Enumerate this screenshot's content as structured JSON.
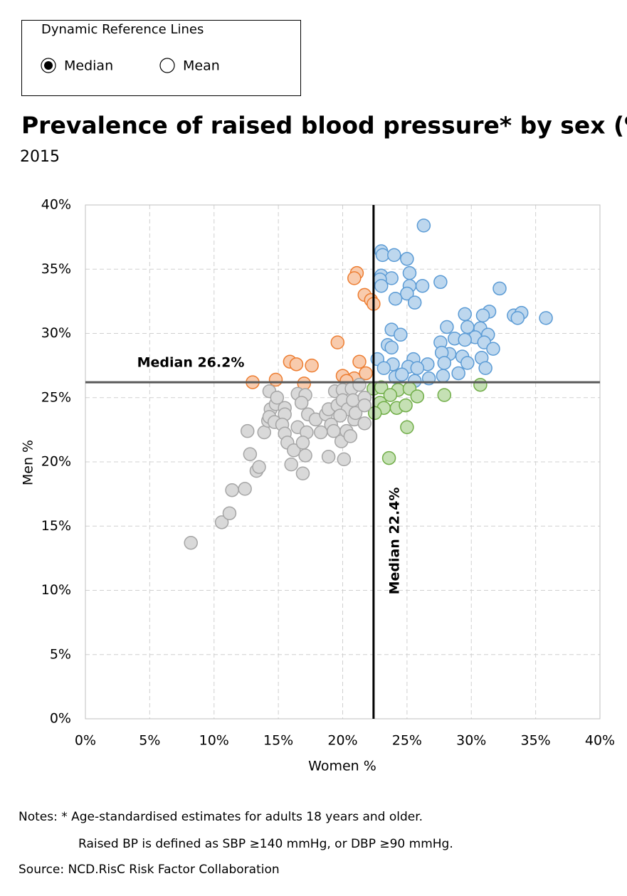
{
  "controls": {
    "title": "Dynamic Reference Lines",
    "options": [
      {
        "label": "Median",
        "selected": true
      },
      {
        "label": "Mean",
        "selected": false
      }
    ]
  },
  "chart_data": {
    "type": "scatter",
    "title": "Prevalence of raised blood pressure* by sex (%)",
    "subtitle": "2015",
    "x_label": "Women %",
    "y_label": "Men %",
    "xlim": [
      0,
      40
    ],
    "ylim": [
      0,
      40
    ],
    "xticks": [
      {
        "value": 0,
        "label": "0%"
      },
      {
        "value": 5,
        "label": "5%"
      },
      {
        "value": 10,
        "label": "10%"
      },
      {
        "value": 15,
        "label": "15%"
      },
      {
        "value": 20,
        "label": "20%"
      },
      {
        "value": 25,
        "label": "25%"
      },
      {
        "value": 30,
        "label": "30%"
      },
      {
        "value": 35,
        "label": "35%"
      },
      {
        "value": 40,
        "label": "40%"
      }
    ],
    "yticks": [
      {
        "value": 0,
        "label": "0%"
      },
      {
        "value": 5,
        "label": "5%"
      },
      {
        "value": 10,
        "label": "10%"
      },
      {
        "value": 15,
        "label": "15%"
      },
      {
        "value": 20,
        "label": "20%"
      },
      {
        "value": 25,
        "label": "25%"
      },
      {
        "value": 30,
        "label": "30%"
      },
      {
        "value": 35,
        "label": "35%"
      },
      {
        "value": 40,
        "label": "40%"
      }
    ],
    "grid": true,
    "reference_lines": [
      {
        "axis": "y",
        "value": 26.2,
        "label": "Median 26.2%",
        "color": "#595959"
      },
      {
        "axis": "x",
        "value": 22.4,
        "label": "Median 22.4%",
        "color": "#000000"
      }
    ],
    "series": [
      {
        "color": "#bdd7ee",
        "edge": "#5b9bd5",
        "x": [
          26.3,
          23.0,
          23.1,
          24.0,
          25.0,
          25.2,
          23.0,
          23.8,
          22.9,
          26.2,
          25.2,
          27.6,
          23.0,
          25.0,
          24.1,
          25.6,
          32.2,
          29.5,
          31.4,
          30.9,
          33.3,
          33.9,
          33.6,
          35.8,
          29.7,
          28.1,
          30.7,
          23.8,
          24.5,
          31.3,
          30.3,
          28.7,
          29.5,
          27.6,
          23.5,
          31.0,
          31.7,
          23.8,
          28.3,
          29.3,
          27.7,
          30.8,
          25.5,
          22.7,
          23.9,
          26.6,
          27.9,
          29.7,
          25.1,
          25.8,
          31.1,
          23.2,
          24.1,
          24.6,
          25.6,
          26.7,
          27.8,
          29.0
        ],
        "y": [
          38.4,
          36.4,
          36.1,
          36.1,
          35.8,
          34.7,
          34.5,
          34.3,
          34.2,
          33.7,
          33.7,
          34.0,
          33.7,
          33.1,
          32.7,
          32.4,
          33.5,
          31.5,
          31.7,
          31.4,
          31.4,
          31.6,
          31.2,
          31.2,
          30.5,
          30.5,
          30.4,
          30.3,
          29.9,
          29.9,
          29.7,
          29.6,
          29.5,
          29.3,
          29.1,
          29.3,
          28.8,
          28.9,
          28.4,
          28.2,
          28.5,
          28.1,
          28.0,
          28.0,
          27.6,
          27.6,
          27.7,
          27.7,
          27.4,
          27.3,
          27.3,
          27.3,
          26.6,
          26.8,
          26.3,
          26.5,
          26.7,
          26.9
        ]
      },
      {
        "color": "#f8cbad",
        "edge": "#ed7d31",
        "x": [
          21.1,
          20.9,
          21.7,
          22.2,
          22.4,
          19.6,
          15.9,
          16.4,
          17.6,
          21.3,
          14.8,
          17.0,
          13.0,
          20.0,
          20.9,
          21.8,
          20.3
        ],
        "y": [
          34.7,
          34.3,
          33.0,
          32.6,
          32.3,
          29.3,
          27.8,
          27.6,
          27.5,
          27.8,
          26.4,
          26.1,
          26.2,
          26.7,
          26.5,
          26.9,
          26.3
        ]
      },
      {
        "color": "#c5e0b4",
        "edge": "#70ad47",
        "x": [
          22.4,
          23.0,
          24.3,
          25.2,
          23.7,
          25.8,
          27.9,
          30.7,
          22.9,
          23.2,
          24.2,
          24.9,
          22.5,
          25.0,
          23.6
        ],
        "y": [
          25.7,
          25.8,
          25.6,
          25.7,
          25.2,
          25.1,
          25.2,
          26.0,
          24.6,
          24.2,
          24.2,
          24.4,
          23.8,
          22.7,
          20.3
        ]
      },
      {
        "color": "#d9d9d9",
        "edge": "#a5a5a5",
        "x": [
          8.2,
          10.6,
          11.2,
          11.4,
          12.4,
          13.3,
          13.5,
          12.8,
          12.6,
          13.9,
          14.2,
          14.4,
          14.8,
          14.3,
          14.7,
          14.3,
          14.9,
          15.5,
          15.5,
          15.3,
          15.5,
          15.7,
          16.0,
          16.2,
          16.5,
          16.5,
          17.1,
          16.8,
          17.3,
          17.2,
          17.1,
          16.9,
          16.9,
          17.9,
          18.3,
          18.7,
          18.9,
          18.9,
          19.1,
          19.3,
          19.6,
          19.4,
          20.0,
          20.0,
          19.9,
          20.1,
          20.3,
          20.4,
          20.7,
          20.8,
          20.6,
          20.9,
          21.0,
          21.3,
          21.7,
          21.7,
          21.7,
          19.8
        ],
        "y": [
          13.7,
          15.3,
          16.0,
          17.8,
          17.9,
          19.3,
          19.6,
          20.6,
          22.4,
          22.3,
          23.2,
          24.1,
          24.5,
          23.5,
          23.1,
          25.5,
          25.0,
          24.2,
          23.7,
          22.9,
          22.2,
          21.5,
          19.8,
          20.9,
          22.7,
          25.3,
          25.2,
          24.6,
          23.7,
          22.3,
          20.5,
          21.5,
          19.1,
          23.3,
          22.3,
          23.7,
          24.1,
          20.4,
          22.9,
          22.4,
          24.4,
          25.5,
          25.6,
          24.8,
          21.6,
          20.2,
          22.4,
          24.1,
          25.7,
          24.8,
          22.0,
          23.3,
          23.8,
          26.0,
          25.0,
          23.0,
          24.4,
          23.6
        ]
      }
    ]
  },
  "notes": [
    "Notes: * Age-standardised estimates for adults 18 years and older.",
    "Raised BP is defined as SBP ≥140 mmHg, or DBP ≥90 mmHg."
  ],
  "source": "Source: NCD.RisC Risk Factor Collaboration"
}
